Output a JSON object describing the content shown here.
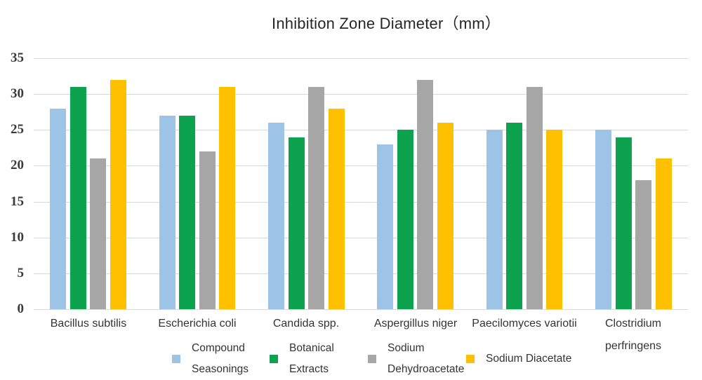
{
  "chart_data": {
    "type": "bar",
    "title": "Inhibition Zone Diameter（mm）",
    "categories": [
      "Bacillus subtilis",
      "Escherichia coli",
      "Candida spp.",
      "Aspergillus niger",
      "Paecilomyces variotii",
      "Clostridium\nperfringens"
    ],
    "series": [
      {
        "name": "Compound\nSeasonings",
        "color": "#9DC3E6",
        "values": [
          28,
          27,
          26,
          23,
          25,
          25
        ]
      },
      {
        "name": "Botanical\nExtracts",
        "color": "#0DA24D",
        "values": [
          31,
          27,
          24,
          25,
          26,
          24
        ]
      },
      {
        "name": "Sodium\nDehydroacetate",
        "color": "#A6A6A6",
        "values": [
          21,
          22,
          31,
          32,
          31,
          18
        ]
      },
      {
        "name": "Sodium Diacetate",
        "color": "#FFC000",
        "values": [
          32,
          31,
          28,
          26,
          25,
          21
        ]
      }
    ],
    "xlabel": "",
    "ylabel": "",
    "ylim": [
      0,
      35
    ],
    "yticks": [
      0,
      5,
      10,
      15,
      20,
      25,
      30,
      35
    ],
    "grid": true,
    "legend_position": "bottom",
    "colors": {
      "gridline": "#D9D9D9",
      "tick_text": "#3B3B3B",
      "label_text": "#333333",
      "title_text": "#262626",
      "background": "#FFFFFF"
    }
  }
}
